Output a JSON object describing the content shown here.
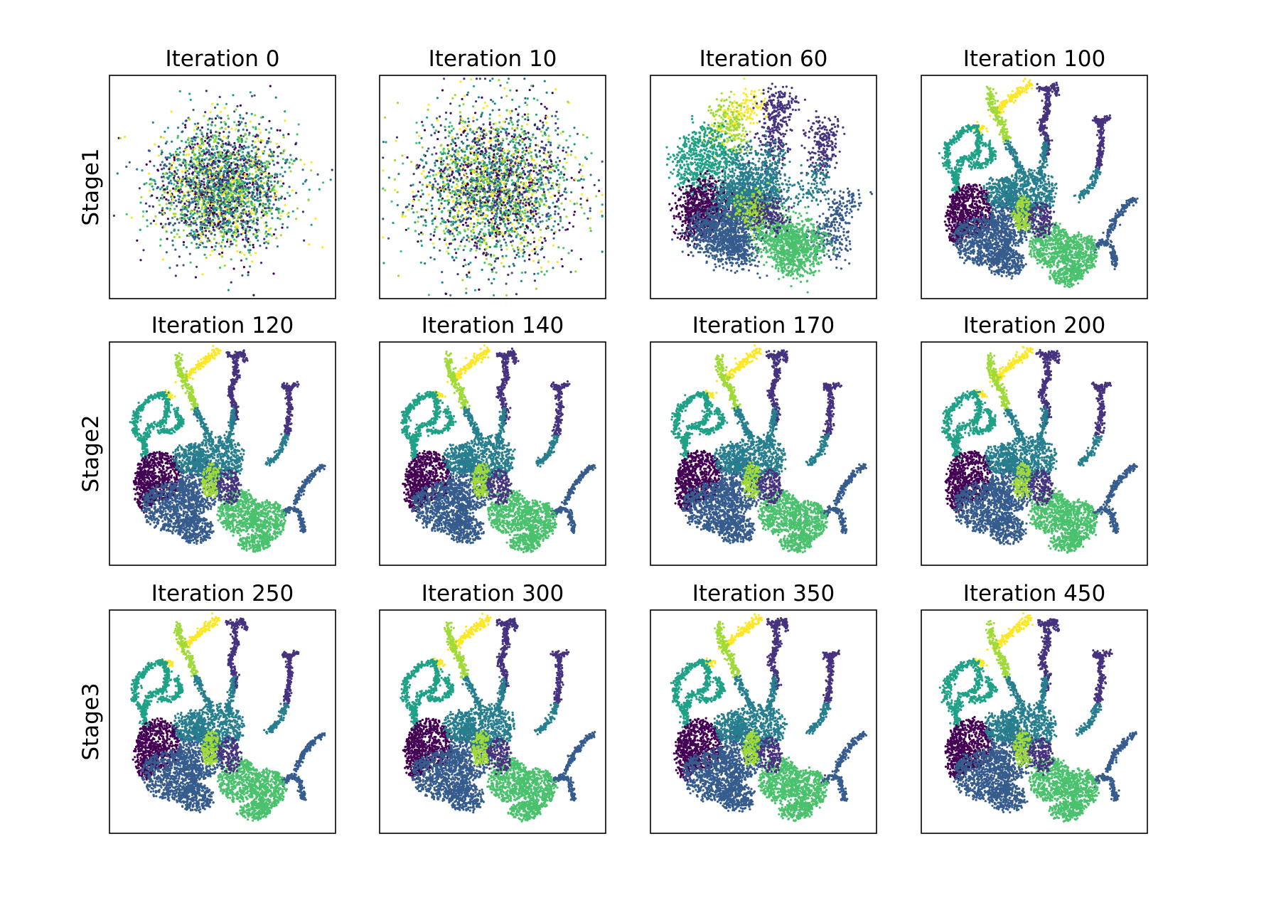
{
  "chart_data": {
    "type": "scatter",
    "layout": "3x4 grid of small-multiple scatter panels, no axis ticks",
    "colormap": "viridis",
    "palette": [
      "#440154",
      "#46327e",
      "#365c8d",
      "#277f8e",
      "#1fa187",
      "#4ac16d",
      "#a0da39",
      "#fde725"
    ],
    "grid": false,
    "legend": "none",
    "rows": [
      "Stage1",
      "Stage2",
      "Stage3"
    ],
    "panels": [
      {
        "row": 0,
        "col": 0,
        "title": "Iteration 0",
        "iteration": 0,
        "stage": "Stage1",
        "state": "random"
      },
      {
        "row": 0,
        "col": 1,
        "title": "Iteration 10",
        "iteration": 10,
        "stage": "Stage1",
        "state": "random-wide"
      },
      {
        "row": 0,
        "col": 2,
        "title": "Iteration 60",
        "iteration": 60,
        "stage": "Stage1",
        "state": "forming"
      },
      {
        "row": 0,
        "col": 3,
        "title": "Iteration 100",
        "iteration": 100,
        "stage": "Stage1",
        "state": "structured"
      },
      {
        "row": 1,
        "col": 0,
        "title": "Iteration 120",
        "iteration": 120,
        "stage": "Stage2",
        "state": "structured"
      },
      {
        "row": 1,
        "col": 1,
        "title": "Iteration 140",
        "iteration": 140,
        "stage": "Stage2",
        "state": "structured"
      },
      {
        "row": 1,
        "col": 2,
        "title": "Iteration 170",
        "iteration": 170,
        "stage": "Stage2",
        "state": "structured"
      },
      {
        "row": 1,
        "col": 3,
        "title": "Iteration 200",
        "iteration": 200,
        "stage": "Stage2",
        "state": "structured"
      },
      {
        "row": 2,
        "col": 0,
        "title": "Iteration 250",
        "iteration": 250,
        "stage": "Stage3",
        "state": "structured"
      },
      {
        "row": 2,
        "col": 1,
        "title": "Iteration 300",
        "iteration": 300,
        "stage": "Stage3",
        "state": "structured"
      },
      {
        "row": 2,
        "col": 2,
        "title": "Iteration 350",
        "iteration": 350,
        "stage": "Stage3",
        "state": "structured"
      },
      {
        "row": 2,
        "col": 3,
        "title": "Iteration 450",
        "iteration": 450,
        "stage": "Stage3",
        "state": "structured"
      }
    ]
  }
}
